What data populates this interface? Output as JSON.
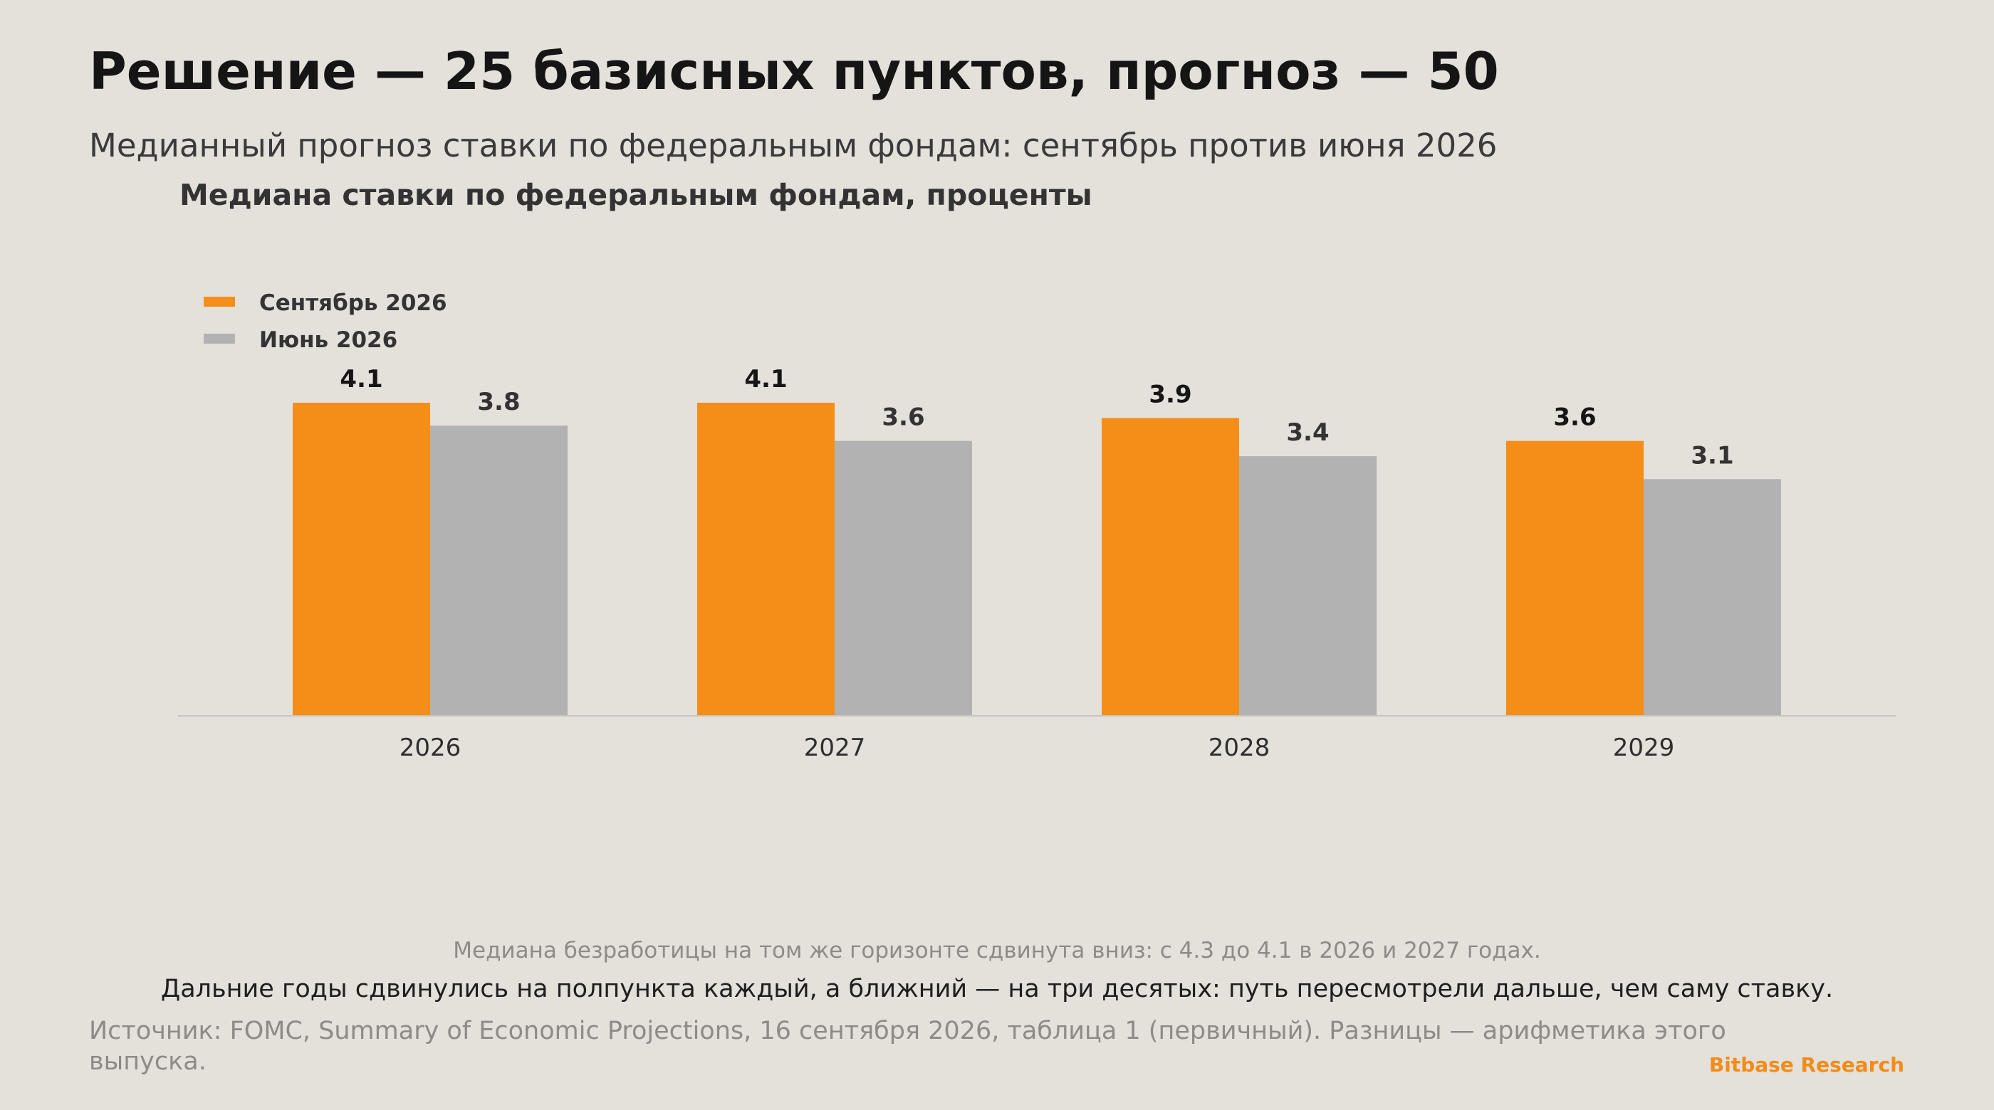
{
  "header": {
    "title": "Решение — 25 базисных пунктов, прогноз — 50",
    "subtitle": "Медианный прогноз ставки по федеральным фондам: сентябрь против июня 2026"
  },
  "chart_data": {
    "type": "bar",
    "title": "Медиана ставки по федеральным фондам, проценты",
    "categories": [
      "2026",
      "2027",
      "2028",
      "2029"
    ],
    "series": [
      {
        "name": "Сентябрь 2026",
        "values": [
          4.1,
          4.1,
          3.9,
          3.6
        ],
        "color": "#f58e18"
      },
      {
        "name": "Июнь 2026",
        "values": [
          3.8,
          3.6,
          3.4,
          3.1
        ],
        "color": "#b2b2b2"
      }
    ],
    "xlabel": "",
    "ylabel": "",
    "ylim": [
      0,
      4.1
    ],
    "grid": false,
    "legend_position": "top-left",
    "label_colors": [
      "#151515",
      "#333333"
    ],
    "axis_color": "#c7c3be",
    "tick_color": "#2e2e2e"
  },
  "notes": {
    "unemployment": "Медиана безработицы на том же горизонте сдвинута вниз: с 4.3 до 4.1 в 2026 и 2027 годах.",
    "takeaway": "Дальние годы сдвинулись на полпункта каждый, а ближний — на три десятых: путь пересмотрели дальше, чем саму ставку."
  },
  "footer": {
    "source": "Источник: FOMC, Summary of Economic Projections, 16 сентября 2026, таблица 1 (первичный). Разницы — арифметика этого выпуска.",
    "brand": "Bitbase Research"
  }
}
